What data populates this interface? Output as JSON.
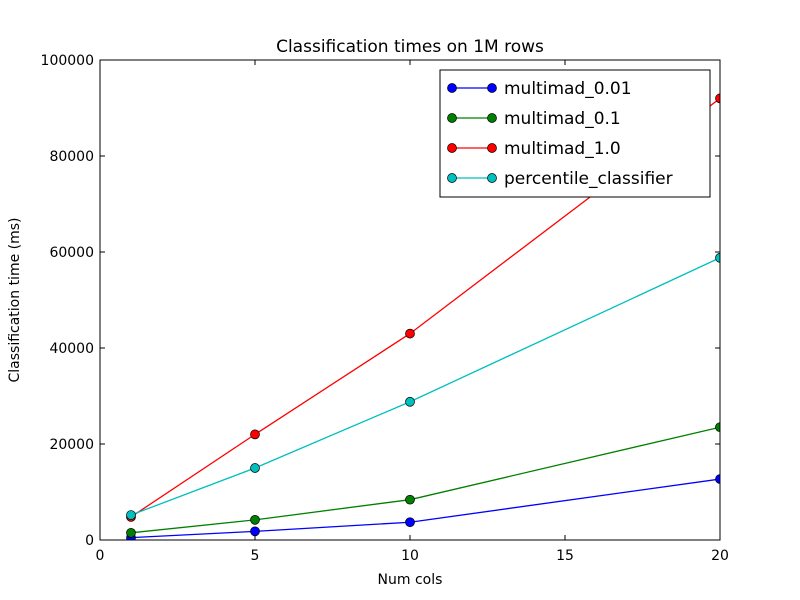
{
  "chart_data": {
    "type": "line",
    "title": "Classification times on 1M rows",
    "xlabel": "Num cols",
    "ylabel": "Classification time (ms)",
    "xlim": [
      0,
      20
    ],
    "ylim": [
      0,
      100000
    ],
    "xticks": [
      0,
      5,
      10,
      15,
      20
    ],
    "yticks": [
      0,
      20000,
      40000,
      60000,
      80000,
      100000
    ],
    "grid": false,
    "legend_position": "upper right",
    "series": [
      {
        "name": "multimad_0.01",
        "color": "#0000ff",
        "x": [
          1,
          5,
          10,
          20
        ],
        "y": [
          500,
          1800,
          3700,
          12700
        ]
      },
      {
        "name": "multimad_0.1",
        "color": "#008000",
        "x": [
          1,
          5,
          10,
          20
        ],
        "y": [
          1500,
          4200,
          8400,
          23500
        ]
      },
      {
        "name": "multimad_1.0",
        "color": "#ff0000",
        "x": [
          1,
          5,
          10,
          20
        ],
        "y": [
          4800,
          22000,
          43000,
          92000
        ]
      },
      {
        "name": "percentile_classifier",
        "color": "#00bfbf",
        "x": [
          1,
          5,
          10,
          20
        ],
        "y": [
          5200,
          15000,
          28800,
          58800
        ]
      }
    ]
  }
}
